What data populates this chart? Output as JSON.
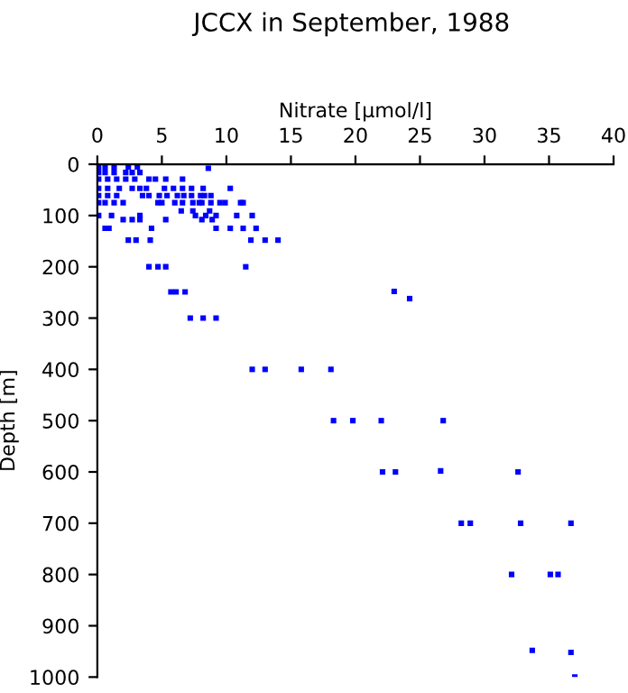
{
  "chart_data": {
    "type": "scatter",
    "title": "JCCX in September, 1988",
    "xlabel": "Nitrate [µmol/l]",
    "ylabel": "Depth [m]",
    "xlim": [
      0,
      40
    ],
    "xticks": [
      0,
      5,
      10,
      15,
      20,
      25,
      30,
      35,
      40
    ],
    "ylim": [
      1000,
      0
    ],
    "yticks": [
      0,
      100,
      200,
      300,
      400,
      500,
      600,
      700,
      800,
      900,
      1000
    ],
    "grid": false,
    "legend": false,
    "marker": "square",
    "series": [
      {
        "color": "#0000ff",
        "x": [
          0.1,
          0.6,
          1.3,
          2.4,
          3.1,
          8.6,
          0.1,
          0.6,
          1.3,
          2.2,
          2.7,
          3.3,
          0.1,
          0.8,
          1.5,
          2.2,
          2.9,
          4.0,
          4.5,
          5.3,
          6.6,
          0.1,
          0.8,
          1.7,
          2.7,
          3.3,
          3.8,
          5.2,
          5.9,
          6.6,
          7.3,
          8.2,
          10.3,
          0.1,
          0.8,
          1.5,
          3.5,
          4.0,
          4.8,
          5.4,
          6.2,
          6.7,
          7.3,
          8.0,
          8.3,
          8.8,
          0.1,
          0.6,
          1.3,
          2.0,
          4.7,
          5.0,
          6.0,
          6.6,
          7.4,
          7.9,
          8.1,
          8.8,
          9.5,
          9.9,
          11.1,
          11.3,
          6.5,
          7.4,
          8.7,
          0.1,
          1.1,
          3.3,
          7.6,
          8.4,
          9.2,
          10.8,
          12.0,
          2.0,
          2.7,
          3.3,
          5.3,
          8.1,
          8.9,
          0.6,
          0.9,
          4.2,
          9.2,
          10.3,
          11.3,
          12.3,
          2.4,
          3.0,
          4.1,
          11.9,
          13.0,
          14.0,
          4.0,
          4.7,
          5.3,
          11.5,
          5.7,
          6.1,
          6.8,
          23.0,
          24.2,
          7.2,
          8.2,
          9.2,
          12.0,
          13.0,
          15.8,
          18.1,
          18.3,
          19.8,
          22.0,
          26.8,
          22.1,
          23.1,
          26.6,
          32.6,
          28.2,
          28.9,
          32.8,
          36.7,
          32.1,
          35.1,
          35.7,
          33.7,
          36.7,
          37.0
        ],
        "values": [
          5,
          5,
          5,
          5,
          5,
          8,
          16,
          16,
          16,
          16,
          16,
          16,
          29,
          29,
          29,
          29,
          29,
          29,
          29,
          29,
          29,
          47,
          47,
          47,
          47,
          47,
          47,
          47,
          47,
          47,
          47,
          47,
          47,
          61,
          61,
          61,
          61,
          61,
          61,
          61,
          61,
          61,
          61,
          61,
          61,
          61,
          75,
          75,
          75,
          75,
          75,
          75,
          75,
          75,
          75,
          75,
          75,
          75,
          75,
          75,
          75,
          75,
          91,
          91,
          91,
          100,
          100,
          100,
          100,
          100,
          100,
          100,
          100,
          108,
          108,
          108,
          108,
          108,
          108,
          125,
          125,
          125,
          125,
          125,
          125,
          125,
          148,
          148,
          148,
          148,
          148,
          148,
          200,
          200,
          200,
          200,
          249,
          249,
          249,
          248,
          262,
          300,
          300,
          300,
          400,
          400,
          400,
          400,
          500,
          500,
          500,
          500,
          600,
          600,
          598,
          600,
          700,
          700,
          700,
          700,
          800,
          800,
          800,
          948,
          952,
          1000
        ]
      }
    ]
  }
}
